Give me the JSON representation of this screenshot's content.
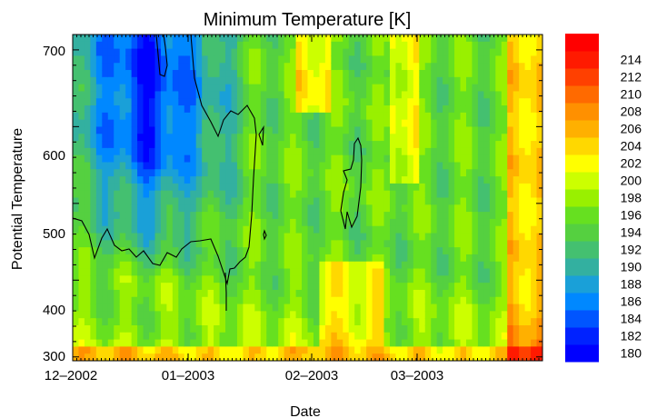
{
  "chart_data": {
    "type": "heatmap",
    "title": "Minimum Temperature [K]",
    "xlabel": "Date",
    "ylabel": "Potential Temperature",
    "x_ticks": [
      "12–2002",
      "01–2003",
      "02–2003",
      "03–2003"
    ],
    "y_ticks": [
      300,
      400,
      500,
      600,
      700
    ],
    "ylim": [
      295,
      720
    ],
    "colorbar": {
      "levels": [
        180,
        182,
        184,
        186,
        188,
        190,
        192,
        194,
        196,
        198,
        200,
        202,
        204,
        206,
        208,
        210,
        212,
        214
      ],
      "colors": [
        "#0000ff",
        "#0022ff",
        "#0055ff",
        "#0088ff",
        "#1aa0d8",
        "#33b0a0",
        "#44c070",
        "#55d040",
        "#66e020",
        "#99f000",
        "#ccff00",
        "#ffff00",
        "#ffd800",
        "#ffb000",
        "#ff9000",
        "#ff6a00",
        "#ff4000",
        "#ff1a00",
        "#ff0000"
      ]
    },
    "contour_level": 190,
    "grid": false
  }
}
